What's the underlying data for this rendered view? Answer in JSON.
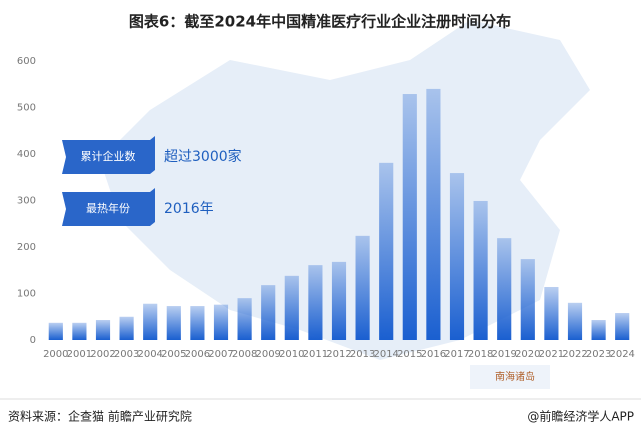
{
  "chart_data": {
    "type": "bar",
    "title": "图表6：截至2024年中国精准医疗行业企业注册时间分布",
    "categories": [
      "2000",
      "2001",
      "2002",
      "2003",
      "2004",
      "2005",
      "2006",
      "2007",
      "2008",
      "2009",
      "2010",
      "2011",
      "2012",
      "2013",
      "2014",
      "2015",
      "2016",
      "2017",
      "2018",
      "2019",
      "2020",
      "2021",
      "2022",
      "2023",
      "2024"
    ],
    "values": [
      37,
      37,
      43,
      50,
      78,
      73,
      73,
      76,
      90,
      118,
      138,
      161,
      168,
      224,
      381,
      529,
      540,
      359,
      299,
      219,
      174,
      114,
      80,
      43,
      58
    ],
    "color": "#1a5fd0",
    "ylim": [
      0,
      600
    ],
    "yticks": [
      0,
      100,
      200,
      300,
      400,
      500,
      600
    ],
    "grid": false,
    "annotations": [
      {
        "label": "累计企业数",
        "value": "超过3000家"
      },
      {
        "label": "最热年份",
        "value": "2016年"
      }
    ],
    "map_label": "南海诸岛",
    "source": "资料来源：企查猫 前瞻产业研究院",
    "credit": "@前瞻经济学人APP"
  }
}
